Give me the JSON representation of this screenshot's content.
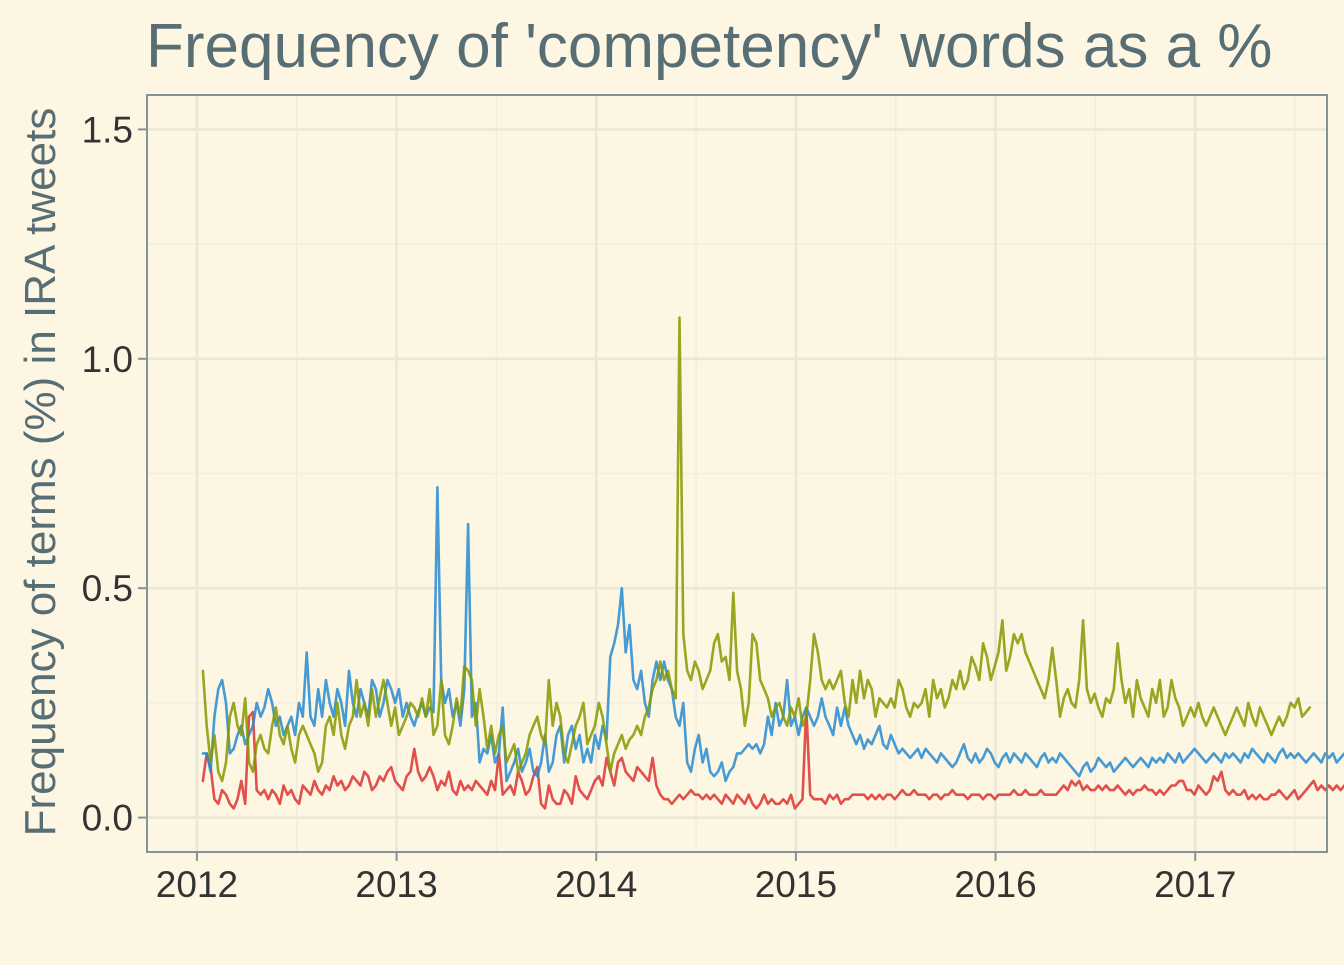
{
  "chart_data": {
    "type": "line",
    "title": "Frequency of 'competency' words as a %",
    "xlabel": "",
    "ylabel": "Frequency of terms (%) in IRA tweets",
    "xlim": [
      2011.75,
      2017.66
    ],
    "ylim": [
      -0.075,
      1.575
    ],
    "x_ticks": [
      2012,
      2013,
      2014,
      2015,
      2016,
      2017
    ],
    "x_tick_labels": [
      "2012",
      "2013",
      "2014",
      "2015",
      "2016",
      "2017"
    ],
    "y_ticks": [
      0.0,
      0.5,
      1.0,
      1.5
    ],
    "y_tick_labels": [
      "0.0",
      "0.5",
      "1.0",
      "1.5"
    ],
    "grid": true,
    "legend": "none",
    "x_start": 2012.03,
    "x_step": 0.01925,
    "series": [
      {
        "color": "#dc322f",
        "values": [
          0.08,
          0.14,
          0.11,
          0.04,
          0.03,
          0.06,
          0.05,
          0.03,
          0.02,
          0.04,
          0.08,
          0.03,
          0.22,
          0.23,
          0.06,
          0.05,
          0.06,
          0.04,
          0.06,
          0.05,
          0.03,
          0.07,
          0.05,
          0.06,
          0.04,
          0.03,
          0.07,
          0.06,
          0.05,
          0.08,
          0.06,
          0.05,
          0.07,
          0.06,
          0.09,
          0.07,
          0.08,
          0.06,
          0.07,
          0.09,
          0.08,
          0.07,
          0.1,
          0.09,
          0.06,
          0.07,
          0.09,
          0.08,
          0.1,
          0.11,
          0.08,
          0.07,
          0.06,
          0.09,
          0.1,
          0.15,
          0.1,
          0.08,
          0.09,
          0.11,
          0.09,
          0.06,
          0.08,
          0.07,
          0.1,
          0.06,
          0.05,
          0.08,
          0.06,
          0.07,
          0.06,
          0.08,
          0.07,
          0.06,
          0.05,
          0.08,
          0.06,
          0.14,
          0.05,
          0.06,
          0.07,
          0.05,
          0.1,
          0.08,
          0.05,
          0.06,
          0.09,
          0.11,
          0.03,
          0.02,
          0.07,
          0.04,
          0.03,
          0.03,
          0.06,
          0.05,
          0.03,
          0.09,
          0.06,
          0.05,
          0.04,
          0.06,
          0.08,
          0.09,
          0.07,
          0.13,
          0.1,
          0.07,
          0.12,
          0.13,
          0.1,
          0.09,
          0.08,
          0.11,
          0.1,
          0.09,
          0.08,
          0.13,
          0.07,
          0.05,
          0.04,
          0.04,
          0.03,
          0.04,
          0.05,
          0.04,
          0.05,
          0.06,
          0.05,
          0.05,
          0.04,
          0.05,
          0.04,
          0.05,
          0.04,
          0.03,
          0.05,
          0.04,
          0.03,
          0.05,
          0.04,
          0.03,
          0.05,
          0.03,
          0.02,
          0.03,
          0.05,
          0.03,
          0.04,
          0.03,
          0.03,
          0.04,
          0.03,
          0.05,
          0.02,
          0.03,
          0.04,
          0.24,
          0.05,
          0.04,
          0.04,
          0.04,
          0.03,
          0.05,
          0.04,
          0.05,
          0.03,
          0.04,
          0.04,
          0.05,
          0.05,
          0.05,
          0.05,
          0.04,
          0.05,
          0.04,
          0.05,
          0.04,
          0.05,
          0.05,
          0.04,
          0.05,
          0.06,
          0.05,
          0.05,
          0.06,
          0.05,
          0.05,
          0.05,
          0.04,
          0.05,
          0.05,
          0.04,
          0.05,
          0.05,
          0.06,
          0.05,
          0.05,
          0.05,
          0.04,
          0.05,
          0.05,
          0.05,
          0.04,
          0.05,
          0.05,
          0.04,
          0.05,
          0.05,
          0.05,
          0.05,
          0.06,
          0.05,
          0.05,
          0.06,
          0.05,
          0.05,
          0.05,
          0.06,
          0.05,
          0.05,
          0.05,
          0.05,
          0.06,
          0.07,
          0.06,
          0.08,
          0.07,
          0.08,
          0.06,
          0.07,
          0.06,
          0.06,
          0.07,
          0.06,
          0.07,
          0.06,
          0.06,
          0.07,
          0.06,
          0.05,
          0.06,
          0.05,
          0.06,
          0.06,
          0.07,
          0.06,
          0.06,
          0.05,
          0.06,
          0.05,
          0.06,
          0.07,
          0.07,
          0.08,
          0.08,
          0.06,
          0.06,
          0.05,
          0.07,
          0.06,
          0.05,
          0.06,
          0.09,
          0.08,
          0.1,
          0.06,
          0.05,
          0.06,
          0.05,
          0.05,
          0.06,
          0.04,
          0.05,
          0.04,
          0.05,
          0.04,
          0.04,
          0.05,
          0.05,
          0.06,
          0.05,
          0.04,
          0.05,
          0.06,
          0.04,
          0.05,
          0.06,
          0.07,
          0.08,
          0.06,
          0.07,
          0.06,
          0.07,
          0.06,
          0.07,
          0.06,
          0.07,
          0.05,
          0.06,
          0.07,
          0.06,
          0.07,
          0.06,
          0.07,
          0.06,
          0.07,
          0.07,
          0.06,
          0.07
        ]
      },
      {
        "color": "#268bd2",
        "values": [
          0.14,
          0.14,
          0.1,
          0.22,
          0.28,
          0.3,
          0.25,
          0.14,
          0.15,
          0.18,
          0.2,
          0.16,
          0.18,
          0.2,
          0.25,
          0.22,
          0.24,
          0.28,
          0.25,
          0.2,
          0.22,
          0.18,
          0.2,
          0.22,
          0.18,
          0.25,
          0.22,
          0.36,
          0.22,
          0.2,
          0.28,
          0.22,
          0.3,
          0.25,
          0.22,
          0.28,
          0.25,
          0.2,
          0.32,
          0.25,
          0.22,
          0.28,
          0.25,
          0.22,
          0.3,
          0.28,
          0.22,
          0.25,
          0.3,
          0.28,
          0.25,
          0.28,
          0.22,
          0.25,
          0.22,
          0.2,
          0.23,
          0.25,
          0.22,
          0.24,
          0.23,
          0.72,
          0.3,
          0.25,
          0.28,
          0.22,
          0.25,
          0.2,
          0.28,
          0.64,
          0.22,
          0.25,
          0.12,
          0.15,
          0.14,
          0.18,
          0.12,
          0.14,
          0.24,
          0.08,
          0.1,
          0.12,
          0.15,
          0.1,
          0.12,
          0.15,
          0.1,
          0.09,
          0.12,
          0.18,
          0.1,
          0.12,
          0.18,
          0.2,
          0.12,
          0.18,
          0.2,
          0.15,
          0.18,
          0.12,
          0.15,
          0.12,
          0.18,
          0.15,
          0.2,
          0.17,
          0.35,
          0.38,
          0.42,
          0.5,
          0.36,
          0.42,
          0.3,
          0.28,
          0.32,
          0.25,
          0.22,
          0.3,
          0.34,
          0.3,
          0.34,
          0.3,
          0.28,
          0.22,
          0.2,
          0.25,
          0.12,
          0.1,
          0.15,
          0.18,
          0.12,
          0.15,
          0.1,
          0.09,
          0.1,
          0.12,
          0.08,
          0.1,
          0.11,
          0.14,
          0.14,
          0.15,
          0.16,
          0.15,
          0.16,
          0.14,
          0.16,
          0.22,
          0.18,
          0.25,
          0.2,
          0.22,
          0.3,
          0.2,
          0.22,
          0.18,
          0.22,
          0.24,
          0.22,
          0.2,
          0.22,
          0.26,
          0.22,
          0.2,
          0.18,
          0.24,
          0.2,
          0.24,
          0.2,
          0.18,
          0.16,
          0.18,
          0.15,
          0.17,
          0.16,
          0.18,
          0.2,
          0.16,
          0.15,
          0.18,
          0.16,
          0.14,
          0.15,
          0.14,
          0.13,
          0.14,
          0.15,
          0.13,
          0.15,
          0.14,
          0.13,
          0.12,
          0.14,
          0.13,
          0.12,
          0.11,
          0.12,
          0.14,
          0.16,
          0.13,
          0.12,
          0.14,
          0.12,
          0.13,
          0.15,
          0.14,
          0.12,
          0.11,
          0.13,
          0.14,
          0.12,
          0.14,
          0.13,
          0.12,
          0.14,
          0.13,
          0.12,
          0.11,
          0.13,
          0.14,
          0.12,
          0.13,
          0.12,
          0.14,
          0.13,
          0.12,
          0.11,
          0.1,
          0.09,
          0.11,
          0.12,
          0.1,
          0.11,
          0.13,
          0.12,
          0.11,
          0.12,
          0.1,
          0.11,
          0.12,
          0.13,
          0.12,
          0.11,
          0.12,
          0.13,
          0.12,
          0.11,
          0.13,
          0.12,
          0.13,
          0.12,
          0.14,
          0.13,
          0.12,
          0.14,
          0.12,
          0.13,
          0.14,
          0.15,
          0.14,
          0.13,
          0.12,
          0.13,
          0.14,
          0.13,
          0.12,
          0.14,
          0.13,
          0.14,
          0.13,
          0.12,
          0.14,
          0.13,
          0.15,
          0.14,
          0.13,
          0.12,
          0.14,
          0.13,
          0.12,
          0.14,
          0.15,
          0.13,
          0.14,
          0.13,
          0.14,
          0.13,
          0.12,
          0.13,
          0.14,
          0.13,
          0.12,
          0.14,
          0.13,
          0.14,
          0.12,
          0.13,
          0.14,
          0.13
        ]
      },
      {
        "color": "#859900",
        "values": [
          0.32,
          0.2,
          0.12,
          0.18,
          0.1,
          0.08,
          0.12,
          0.22,
          0.25,
          0.2,
          0.18,
          0.26,
          0.12,
          0.1,
          0.16,
          0.18,
          0.15,
          0.14,
          0.2,
          0.24,
          0.18,
          0.16,
          0.2,
          0.15,
          0.12,
          0.18,
          0.2,
          0.18,
          0.16,
          0.14,
          0.1,
          0.12,
          0.2,
          0.22,
          0.18,
          0.25,
          0.18,
          0.15,
          0.2,
          0.22,
          0.3,
          0.22,
          0.25,
          0.2,
          0.28,
          0.22,
          0.26,
          0.3,
          0.25,
          0.2,
          0.24,
          0.18,
          0.2,
          0.22,
          0.25,
          0.24,
          0.22,
          0.26,
          0.22,
          0.28,
          0.18,
          0.2,
          0.3,
          0.18,
          0.16,
          0.2,
          0.26,
          0.22,
          0.33,
          0.32,
          0.3,
          0.2,
          0.28,
          0.22,
          0.15,
          0.2,
          0.14,
          0.18,
          0.2,
          0.12,
          0.14,
          0.16,
          0.1,
          0.12,
          0.14,
          0.18,
          0.2,
          0.22,
          0.18,
          0.16,
          0.3,
          0.2,
          0.25,
          0.22,
          0.14,
          0.12,
          0.16,
          0.2,
          0.22,
          0.25,
          0.16,
          0.18,
          0.2,
          0.25,
          0.22,
          0.16,
          0.1,
          0.14,
          0.16,
          0.18,
          0.15,
          0.17,
          0.18,
          0.2,
          0.18,
          0.22,
          0.24,
          0.28,
          0.3,
          0.34,
          0.3,
          0.32,
          0.28,
          0.26,
          1.09,
          0.4,
          0.32,
          0.3,
          0.34,
          0.32,
          0.28,
          0.3,
          0.32,
          0.38,
          0.4,
          0.34,
          0.35,
          0.3,
          0.49,
          0.32,
          0.28,
          0.2,
          0.25,
          0.4,
          0.38,
          0.3,
          0.28,
          0.26,
          0.22,
          0.24,
          0.25,
          0.22,
          0.2,
          0.24,
          0.22,
          0.26,
          0.2,
          0.22,
          0.3,
          0.4,
          0.36,
          0.3,
          0.28,
          0.3,
          0.28,
          0.3,
          0.32,
          0.25,
          0.22,
          0.3,
          0.25,
          0.32,
          0.26,
          0.3,
          0.28,
          0.22,
          0.26,
          0.25,
          0.24,
          0.26,
          0.24,
          0.3,
          0.28,
          0.24,
          0.22,
          0.25,
          0.24,
          0.25,
          0.28,
          0.22,
          0.3,
          0.26,
          0.28,
          0.24,
          0.26,
          0.3,
          0.28,
          0.32,
          0.28,
          0.3,
          0.35,
          0.33,
          0.3,
          0.38,
          0.35,
          0.3,
          0.33,
          0.36,
          0.43,
          0.32,
          0.35,
          0.4,
          0.38,
          0.4,
          0.36,
          0.34,
          0.32,
          0.3,
          0.28,
          0.26,
          0.3,
          0.37,
          0.3,
          0.22,
          0.26,
          0.28,
          0.25,
          0.24,
          0.3,
          0.43,
          0.28,
          0.25,
          0.27,
          0.24,
          0.22,
          0.26,
          0.25,
          0.28,
          0.38,
          0.3,
          0.25,
          0.28,
          0.22,
          0.3,
          0.26,
          0.24,
          0.22,
          0.28,
          0.25,
          0.3,
          0.22,
          0.24,
          0.3,
          0.26,
          0.24,
          0.2,
          0.22,
          0.24,
          0.22,
          0.25,
          0.22,
          0.2,
          0.22,
          0.24,
          0.22,
          0.2,
          0.18,
          0.2,
          0.22,
          0.24,
          0.22,
          0.2,
          0.25,
          0.22,
          0.2,
          0.24,
          0.22,
          0.2,
          0.18,
          0.2,
          0.22,
          0.2,
          0.22,
          0.25,
          0.24,
          0.26,
          0.22,
          0.23,
          0.24
        ]
      }
    ]
  }
}
